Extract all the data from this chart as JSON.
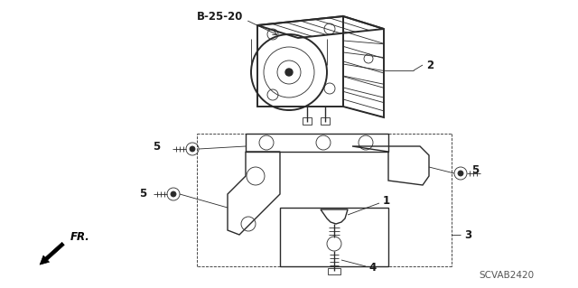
{
  "background_color": "#ffffff",
  "diagram_code": "SCVAB2420",
  "labels": {
    "B_25_20": "B-25-20",
    "part1": "1",
    "part2": "2",
    "part3": "3",
    "part4": "4",
    "part5": "5",
    "fr": "FR."
  },
  "line_color": "#2a2a2a",
  "text_color": "#1a1a1a",
  "lw_main": 1.0,
  "lw_thin": 0.6,
  "lw_thick": 1.4
}
